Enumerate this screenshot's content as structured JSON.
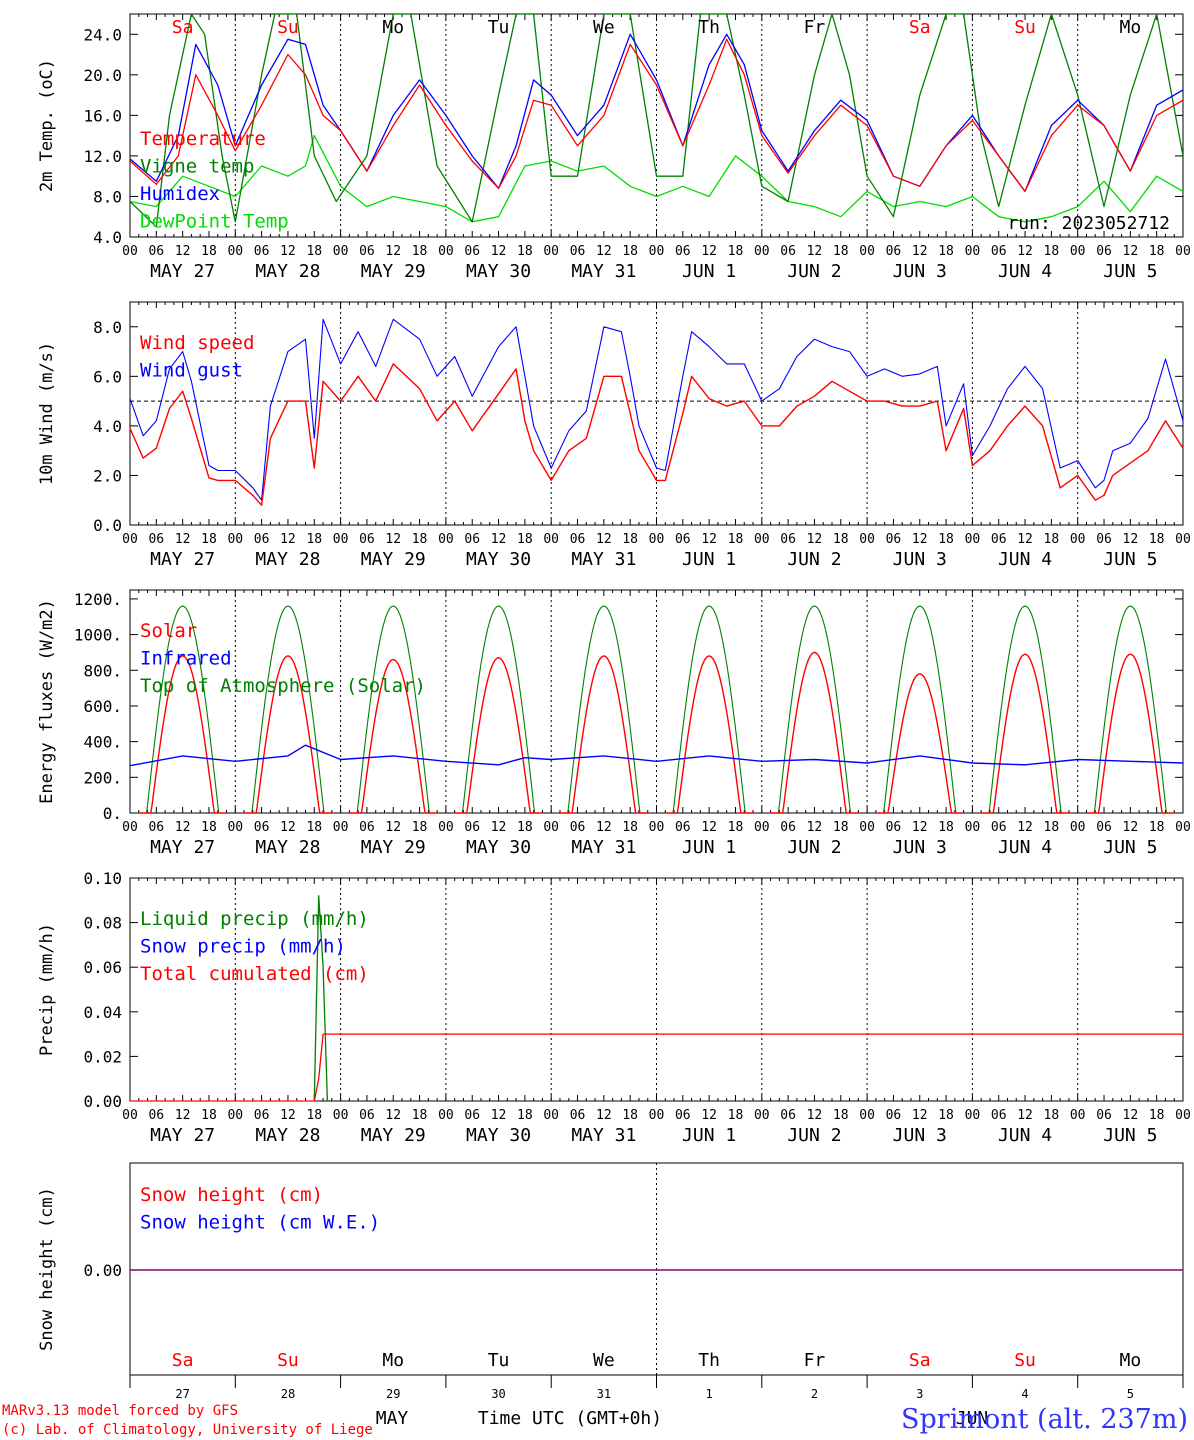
{
  "colors": {
    "red": "#ff0000",
    "blue": "#0000ff",
    "dark_green": "#008000",
    "light_green": "#00dd00",
    "purple": "#800080",
    "black": "#000000"
  },
  "x_axis": {
    "hour_labels": [
      "00",
      "06",
      "12",
      "18"
    ],
    "end_hour_label": "00",
    "date_labels": [
      "MAY 27",
      "MAY 28",
      "MAY 29",
      "MAY 30",
      "MAY 31",
      "JUN  1",
      "JUN  2",
      "JUN  3",
      "JUN  4",
      "JUN  5"
    ],
    "weekdays": [
      "Sa",
      "Su",
      "Mo",
      "Tu",
      "We",
      "Th",
      "Fr",
      "Sa",
      "Su",
      "Mo"
    ],
    "weekend_flags": [
      true,
      true,
      false,
      false,
      false,
      false,
      false,
      true,
      true,
      false
    ],
    "day_numbers": [
      "27",
      "28",
      "29",
      "30",
      "31",
      "1",
      "2",
      "3",
      "4",
      "5"
    ],
    "month_label_may": "MAY",
    "month_label_jun": "JUN",
    "axis_title": "Time UTC (GMT+0h)"
  },
  "footer": {
    "credit_line1": "MARv3.13 model forced by GFS",
    "credit_line2": "(c) Lab. of Climatology, University of Liege",
    "station": "Sprimont (alt. 237m)"
  },
  "chart_data": [
    {
      "type": "line",
      "panel": "temperature",
      "ylabel": "2m Temp. (oC)",
      "ylim": [
        4,
        26
      ],
      "yticks": [
        "4.0",
        "8.0",
        "12.0",
        "16.0",
        "20.0",
        "24.0"
      ],
      "run_label": "run: 2023052712",
      "legend": [
        "Temperature",
        "Vigne temp",
        "Humidex",
        "DewPoint Temp"
      ],
      "x_unit": "hours since 2023-05-27 00 UTC",
      "series": [
        {
          "name": "Temperature",
          "color": "red",
          "x": [
            0,
            6,
            11,
            15,
            20,
            24,
            30,
            36,
            40,
            44,
            48,
            54,
            60,
            66,
            72,
            78,
            84,
            88,
            92,
            96,
            102,
            108,
            114,
            120,
            126,
            132,
            136,
            140,
            144,
            150,
            156,
            162,
            168,
            174,
            180,
            186,
            192,
            198,
            204,
            210,
            216,
            222,
            228,
            234,
            240
          ],
          "values": [
            11.5,
            9.2,
            12,
            20,
            16,
            12.5,
            17,
            22,
            20,
            16,
            14.5,
            10.5,
            15,
            19,
            15,
            11.5,
            8.8,
            12,
            17.5,
            17,
            13,
            16,
            23,
            19,
            13,
            19,
            23.5,
            20,
            14,
            10.3,
            14,
            17,
            15,
            10,
            9,
            13,
            15.5,
            12,
            8.5,
            14,
            17,
            15,
            10.5,
            16,
            17.5
          ]
        },
        {
          "name": "Vigne temp",
          "color": "dark_green",
          "x": [
            0,
            6,
            9,
            14,
            17,
            21,
            24,
            30,
            33,
            38,
            42,
            47,
            54,
            60,
            64,
            70,
            78,
            84,
            88,
            92,
            96,
            102,
            108,
            114,
            120,
            126,
            130,
            136,
            140,
            144,
            150,
            156,
            160,
            164,
            168,
            174,
            180,
            186,
            190,
            194,
            198,
            204,
            210,
            216,
            222,
            228,
            234,
            240
          ],
          "values": [
            7.5,
            5,
            16,
            26,
            24,
            12,
            5.5,
            20,
            26,
            26,
            12,
            7.5,
            12,
            26,
            26,
            11,
            5.5,
            18,
            26,
            26,
            10,
            10,
            26,
            26,
            10,
            10,
            26,
            26,
            18,
            9,
            7.5,
            20,
            26,
            20,
            10,
            6,
            18,
            26,
            26,
            14,
            7,
            17,
            26,
            18,
            7,
            18,
            26,
            12
          ]
        },
        {
          "name": "Humidex",
          "color": "blue",
          "x": [
            0,
            6,
            11,
            15,
            20,
            24,
            30,
            36,
            40,
            44,
            48,
            54,
            60,
            66,
            72,
            78,
            84,
            88,
            92,
            96,
            102,
            108,
            114,
            120,
            126,
            132,
            136,
            140,
            144,
            150,
            156,
            162,
            168,
            174,
            180,
            186,
            192,
            198,
            204,
            210,
            216,
            222,
            228,
            234,
            240
          ],
          "values": [
            11.7,
            9.5,
            14,
            23,
            19,
            13,
            19,
            23.5,
            23,
            17,
            14.5,
            10.5,
            16,
            19.5,
            16,
            12,
            8.8,
            13,
            19.5,
            18,
            14,
            17,
            24,
            19.5,
            13,
            21,
            24,
            21,
            14.5,
            10.5,
            14.5,
            17.5,
            15.5,
            10,
            9,
            13,
            16,
            12,
            8.5,
            15,
            17.5,
            15,
            10.5,
            17,
            18.5
          ]
        },
        {
          "name": "DewPoint Temp",
          "color": "light_green",
          "x": [
            0,
            6,
            12,
            18,
            24,
            30,
            36,
            40,
            42,
            48,
            54,
            60,
            66,
            72,
            78,
            84,
            90,
            96,
            102,
            108,
            114,
            120,
            126,
            132,
            138,
            144,
            150,
            156,
            162,
            168,
            174,
            180,
            186,
            192,
            198,
            204,
            210,
            216,
            222,
            228,
            234,
            240
          ],
          "values": [
            7.5,
            7,
            10,
            9,
            8,
            11,
            10,
            11,
            14,
            9,
            7,
            8,
            7.5,
            7,
            5.5,
            6,
            11,
            11.5,
            10.5,
            11,
            9,
            8,
            9,
            8,
            12,
            10,
            7.5,
            7,
            6,
            8.5,
            7,
            7.5,
            7,
            8,
            6,
            5.5,
            6,
            7,
            9.5,
            6.5,
            10,
            8.5
          ]
        }
      ]
    },
    {
      "type": "line",
      "panel": "wind",
      "ylabel": "10m Wind (m/s)",
      "ylim": [
        0,
        9
      ],
      "yticks": [
        "0.0",
        "2.0",
        "4.0",
        "6.0",
        "8.0"
      ],
      "reference_line": 5,
      "legend": [
        "Wind speed",
        "Wind gust"
      ],
      "x_unit": "hours since 2023-05-27 00 UTC",
      "series": [
        {
          "name": "Wind speed",
          "color": "red",
          "x": [
            0,
            3,
            6,
            9,
            12,
            14,
            18,
            20,
            24,
            28,
            30,
            32,
            36,
            40,
            42,
            44,
            48,
            52,
            56,
            60,
            66,
            70,
            74,
            78,
            84,
            88,
            90,
            92,
            96,
            100,
            104,
            108,
            112,
            114,
            116,
            120,
            122,
            126,
            128,
            132,
            136,
            140,
            144,
            148,
            152,
            156,
            160,
            164,
            168,
            172,
            176,
            180,
            184,
            186,
            190,
            192,
            196,
            200,
            204,
            208,
            212,
            216,
            220,
            222,
            224,
            228,
            232,
            236,
            240
          ],
          "values": [
            3.9,
            2.7,
            3.1,
            4.7,
            5.4,
            4.3,
            1.9,
            1.8,
            1.8,
            1.2,
            0.8,
            3.5,
            5.0,
            5.0,
            2.3,
            5.8,
            5.0,
            6.0,
            5.0,
            6.5,
            5.5,
            4.2,
            5.0,
            3.8,
            5.3,
            6.3,
            4.2,
            3.0,
            1.8,
            3.0,
            3.5,
            6.0,
            6.0,
            4.5,
            3.0,
            1.8,
            1.8,
            4.5,
            6.0,
            5.1,
            4.8,
            5.0,
            4.0,
            4.0,
            4.8,
            5.2,
            5.8,
            5.4,
            5.0,
            5.0,
            4.8,
            4.8,
            5.0,
            3.0,
            4.7,
            2.4,
            3.0,
            4.0,
            4.8,
            4.0,
            1.5,
            2.0,
            1.0,
            1.2,
            2.0,
            2.5,
            3.0,
            4.2,
            3.1
          ]
        },
        {
          "name": "Wind gust",
          "color": "blue",
          "x": [
            0,
            3,
            6,
            9,
            12,
            14,
            18,
            20,
            24,
            28,
            30,
            32,
            36,
            40,
            42,
            44,
            48,
            52,
            56,
            60,
            66,
            70,
            74,
            78,
            84,
            88,
            90,
            92,
            96,
            100,
            104,
            108,
            112,
            114,
            116,
            120,
            122,
            126,
            128,
            132,
            136,
            140,
            144,
            148,
            152,
            156,
            160,
            164,
            168,
            172,
            176,
            180,
            184,
            186,
            190,
            192,
            196,
            200,
            204,
            208,
            212,
            216,
            220,
            222,
            224,
            228,
            232,
            236,
            240
          ],
          "values": [
            5.1,
            3.6,
            4.2,
            6.3,
            7.0,
            5.8,
            2.4,
            2.2,
            2.2,
            1.5,
            1.0,
            4.8,
            7.0,
            7.5,
            3.5,
            8.3,
            6.5,
            7.8,
            6.4,
            8.3,
            7.5,
            6.0,
            6.8,
            5.2,
            7.2,
            8.0,
            6.0,
            4.0,
            2.3,
            3.8,
            4.6,
            8.0,
            7.8,
            6.0,
            4.0,
            2.3,
            2.2,
            6.0,
            7.8,
            7.2,
            6.5,
            6.5,
            5.0,
            5.5,
            6.8,
            7.5,
            7.2,
            7.0,
            6.0,
            6.3,
            6.0,
            6.1,
            6.4,
            4.0,
            5.7,
            2.8,
            4.0,
            5.5,
            6.4,
            5.5,
            2.3,
            2.6,
            1.5,
            1.8,
            3.0,
            3.3,
            4.3,
            6.7,
            4.2
          ]
        }
      ]
    },
    {
      "type": "line",
      "panel": "energy",
      "ylabel": "Energy fluxes (W/m2)",
      "ylim": [
        0,
        1250
      ],
      "yticks": [
        "0.",
        "200.",
        "400.",
        "600.",
        "800.",
        "1000.",
        "1200."
      ],
      "legend": [
        "Solar",
        "Infrared",
        "Top of Atmosphere (Solar)"
      ],
      "daily_peaks": {
        "top_of_atmosphere_solar": 1160,
        "solar": [
          880,
          880,
          860,
          870,
          880,
          880,
          900,
          780,
          890,
          890
        ]
      },
      "infrared_range": [
        260,
        390
      ],
      "series": [
        {
          "name": "Solar",
          "color": "red",
          "description_values": [
            880,
            880,
            860,
            870,
            880,
            880,
            900,
            780,
            890,
            890
          ]
        },
        {
          "name": "Infrared",
          "color": "blue",
          "x": [
            0,
            12,
            24,
            36,
            40,
            48,
            60,
            72,
            84,
            90,
            96,
            108,
            120,
            132,
            144,
            156,
            168,
            180,
            192,
            204,
            216,
            228,
            240
          ],
          "values": [
            265,
            320,
            290,
            320,
            380,
            300,
            320,
            290,
            270,
            310,
            300,
            320,
            290,
            320,
            290,
            300,
            280,
            320,
            280,
            270,
            300,
            290,
            280
          ]
        },
        {
          "name": "Top of Atmosphere (Solar)",
          "color": "dark_green",
          "description_values": [
            1160,
            1160,
            1160,
            1160,
            1160,
            1160,
            1160,
            1160,
            1160,
            1160
          ]
        }
      ]
    },
    {
      "type": "line",
      "panel": "precip",
      "ylabel": "Precip (mm/h)",
      "ylim": [
        0,
        0.1
      ],
      "yticks": [
        "0.00",
        "0.02",
        "0.04",
        "0.06",
        "0.08",
        "0.10"
      ],
      "legend": [
        "Liquid precip (mm/h)",
        "Snow precip (mm/h)",
        "Total cumulated (cm)"
      ],
      "series": [
        {
          "name": "Liquid precip (mm/h)",
          "color": "dark_green",
          "x": [
            42,
            43,
            44,
            45
          ],
          "values": [
            0,
            0.092,
            0.06,
            0
          ]
        },
        {
          "name": "Snow precip (mm/h)",
          "color": "blue",
          "x": [
            0,
            240
          ],
          "values": [
            0,
            0
          ]
        },
        {
          "name": "Total cumulated (cm)",
          "color": "red",
          "x": [
            0,
            42,
            43,
            44,
            240
          ],
          "values": [
            0,
            0,
            0.01,
            0.03,
            0.03
          ]
        }
      ]
    },
    {
      "type": "line",
      "panel": "snow",
      "ylabel": "Snow height (cm)",
      "yticks": [
        "0.00"
      ],
      "legend": [
        "Snow height (cm)",
        "Snow height (cm W.E.)"
      ],
      "series": [
        {
          "name": "Snow height (cm)",
          "color": "red",
          "x": [
            0,
            240
          ],
          "values": [
            0,
            0
          ]
        },
        {
          "name": "Snow height (cm W.E.)",
          "color": "blue",
          "x": [
            0,
            240
          ],
          "values": [
            0,
            0
          ]
        }
      ]
    }
  ]
}
